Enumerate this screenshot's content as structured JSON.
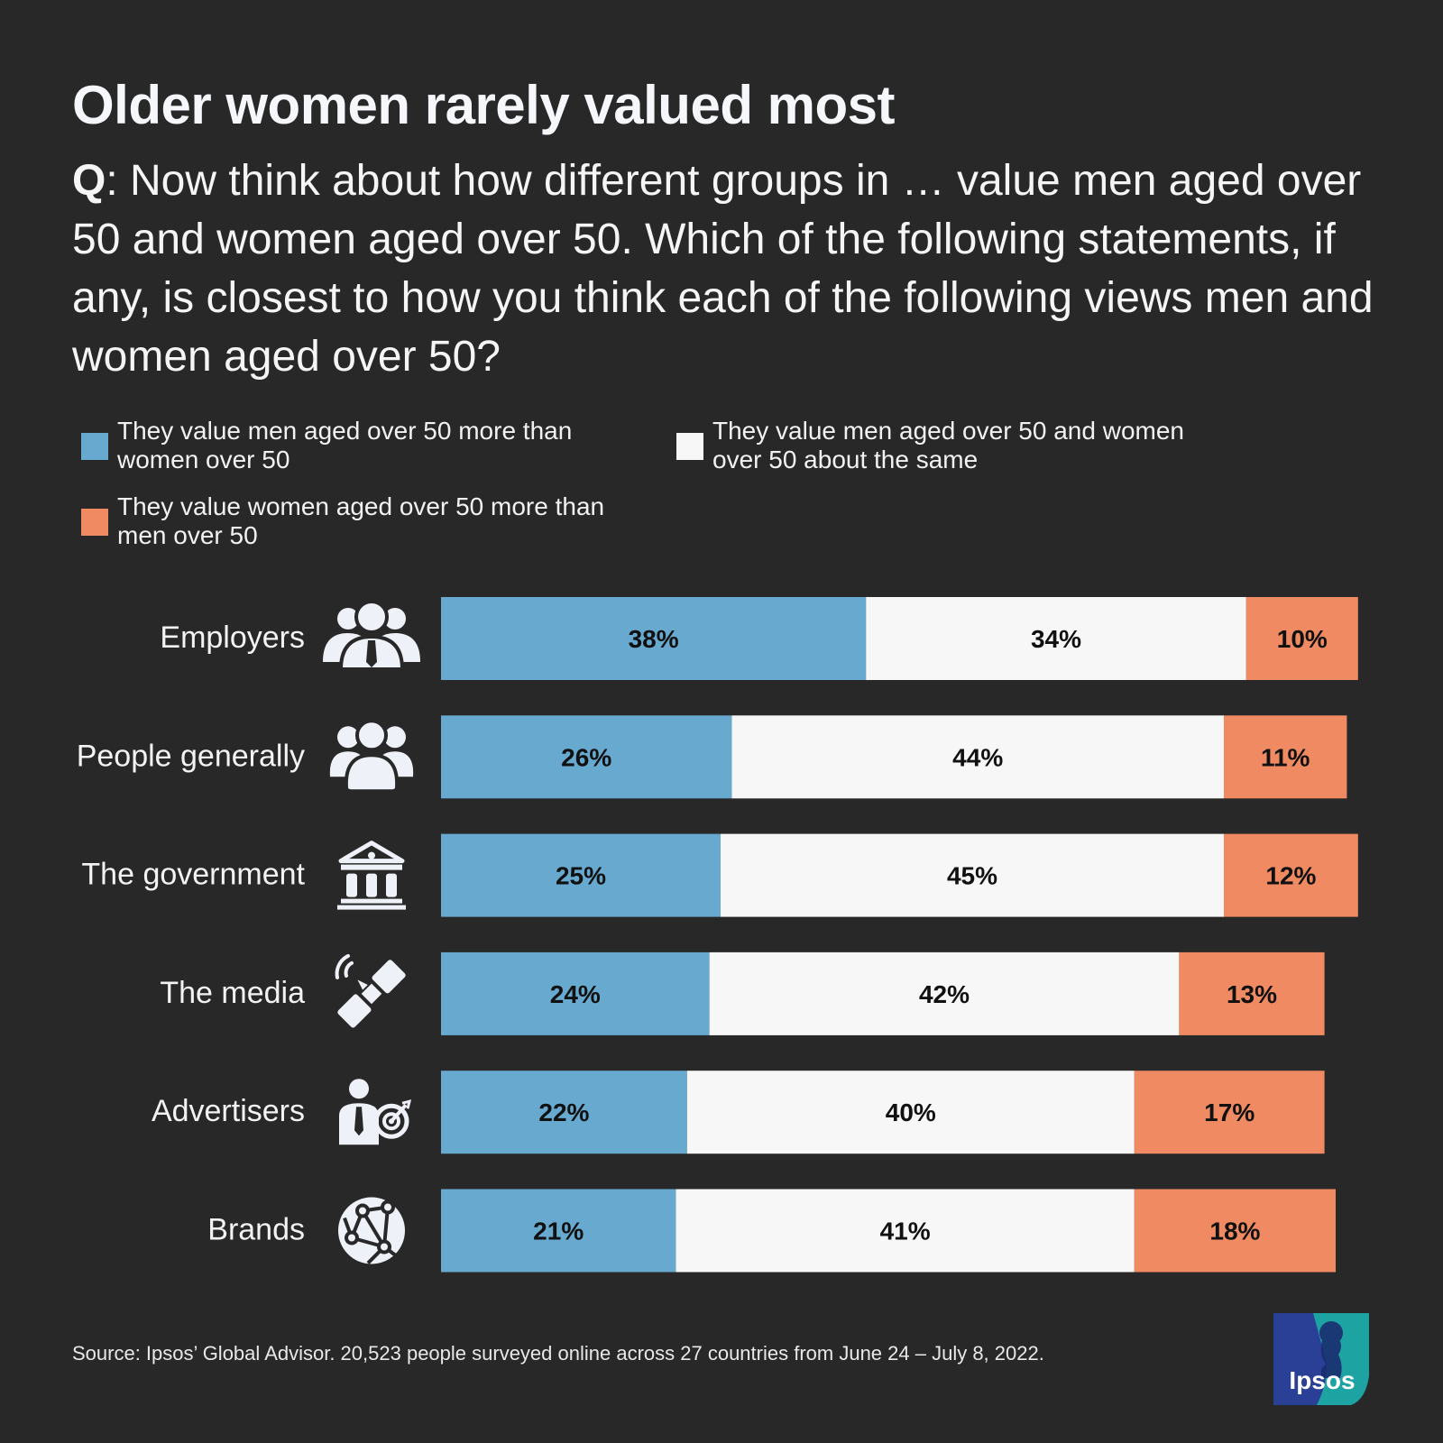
{
  "title": "Older women rarely valued most",
  "question": {
    "prefix": "Q",
    "text": ": Now think about how different groups in … value men aged over 50 and women aged over 50. Which of the following statements, if any, is closest to how you think each of the following views men and women aged over 50?"
  },
  "legend": [
    {
      "label": "They value men aged over 50 more than women over 50",
      "color": "#67a9cf"
    },
    {
      "label": "They value men aged over 50 and women over 50 about the same",
      "color": "#f7f7f7"
    },
    {
      "label": "They value women aged over 50 more than men over 50",
      "color": "#ef8a62"
    }
  ],
  "chart_data": {
    "type": "bar",
    "orientation": "horizontal",
    "stacked": true,
    "categories": [
      "Employers",
      "People generally",
      "The government",
      "The media",
      "Advertisers",
      "Brands"
    ],
    "category_icons": [
      "business-team-icon",
      "people-group-icon",
      "government-building-icon",
      "satellite-icon",
      "advertiser-target-icon",
      "network-globe-icon"
    ],
    "series": [
      {
        "name": "They value men aged over 50 more than women over 50",
        "color": "#67a9cf",
        "values": [
          38,
          26,
          25,
          24,
          22,
          21
        ]
      },
      {
        "name": "They value men aged over 50 and women over 50 about the same",
        "color": "#f7f7f7",
        "values": [
          34,
          44,
          45,
          42,
          40,
          41
        ]
      },
      {
        "name": "They value women aged over 50 more than men over 50",
        "color": "#ef8a62",
        "values": [
          10,
          11,
          12,
          13,
          17,
          18
        ]
      }
    ],
    "value_suffix": "%",
    "xlim": [
      0,
      82
    ],
    "axes_visible": false,
    "grid": false,
    "legend_position": "top"
  },
  "source": "Source: Ipsos’ Global Advisor. 20,523 people surveyed online across 27 countries from June 24 – July 8, 2022.",
  "logo": {
    "text": "Ipsos",
    "colors": [
      "#2a3f96",
      "#1ea3a3"
    ]
  }
}
